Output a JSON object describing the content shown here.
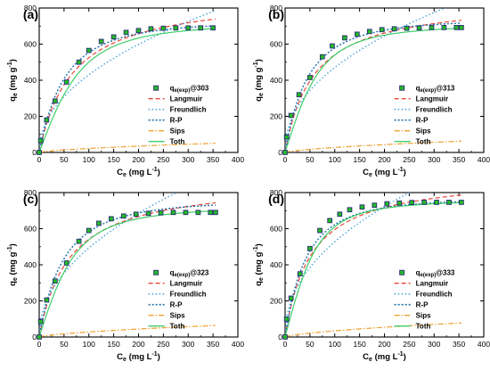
{
  "colors": {
    "marker_fill": "#22bb22",
    "marker_edge": "#2a2a7a",
    "langmuir": "#e8473a",
    "freundlich": "#4aa3d8",
    "rp": "#1e6fa8",
    "sips": "#f0a030",
    "toth": "#3fcf6a"
  },
  "chart_data": [
    {
      "type": "scatter",
      "panel_label": "(a)",
      "xlabel_main": "C",
      "xlabel_sub": "e",
      "xlabel_unit": " (mg L",
      "xlabel_sup": "-1",
      "xlabel_close": ")",
      "ylabel_main": "q",
      "ylabel_sub": "e",
      "ylabel_unit": " (mg g",
      "ylabel_sup": "-1",
      "ylabel_close": ")",
      "xlim": [
        0,
        400
      ],
      "ylim": [
        0,
        800
      ],
      "xticks": [
        0,
        50,
        100,
        150,
        200,
        250,
        300,
        350,
        400
      ],
      "yticks": [
        0,
        200,
        400,
        600,
        800
      ],
      "grid": false,
      "legend_position": "bottom-right",
      "legend": {
        "exp_main": "q",
        "exp_sub": "e(exp)",
        "exp_suffix": "@303",
        "models": [
          "Langmuir",
          "Freundlich",
          "R-P",
          "Sips",
          "Toth"
        ]
      },
      "points": {
        "x": [
          0,
          3,
          15,
          32,
          55,
          80,
          100,
          125,
          150,
          175,
          200,
          225,
          250,
          275,
          300,
          325,
          350
        ],
        "y": [
          0,
          65,
          180,
          285,
          390,
          500,
          565,
          615,
          640,
          665,
          675,
          685,
          688,
          690,
          690,
          690,
          690
        ]
      },
      "models": {
        "langmuir": {
          "qm": 880,
          "K": 0.0148
        },
        "freundlich": {
          "Kf": 48,
          "n": 2.1
        },
        "rp": {
          "K": 14,
          "a": 0.0101,
          "b": 1.09
        },
        "sips": {
          "qm": 760,
          "K": 0.00125,
          "n": 1.45
        },
        "toth": {
          "qm": 720,
          "b": 0.0102,
          "t": 1.85
        }
      },
      "x_end": 355
    },
    {
      "type": "scatter",
      "panel_label": "(b)",
      "xlabel_main": "C",
      "xlabel_sub": "e",
      "xlabel_unit": " (mg L",
      "xlabel_sup": "-1",
      "xlabel_close": ")",
      "ylabel_main": "q",
      "ylabel_sub": "e",
      "ylabel_unit": " (mg g",
      "ylabel_sup": "-1",
      "ylabel_close": ")",
      "xlim": [
        0,
        400
      ],
      "ylim": [
        0,
        800
      ],
      "xticks": [
        0,
        50,
        100,
        150,
        200,
        250,
        300,
        350,
        400
      ],
      "yticks": [
        0,
        200,
        400,
        600,
        800
      ],
      "grid": false,
      "legend_position": "bottom-right",
      "legend": {
        "exp_main": "q",
        "exp_sub": "e(exp)",
        "exp_suffix": "@313",
        "models": [
          "Langmuir",
          "Freundlich",
          "R-P",
          "Sips",
          "Toth"
        ]
      },
      "points": {
        "x": [
          0,
          3,
          12,
          28,
          50,
          75,
          95,
          120,
          145,
          170,
          195,
          220,
          245,
          270,
          295,
          320,
          345,
          355
        ],
        "y": [
          0,
          85,
          205,
          320,
          415,
          530,
          590,
          635,
          655,
          670,
          680,
          685,
          688,
          690,
          692,
          692,
          692,
          692
        ]
      },
      "models": {
        "langmuir": {
          "qm": 850,
          "K": 0.0175
        },
        "freundlich": {
          "Kf": 58,
          "n": 2.2
        },
        "rp": {
          "K": 16,
          "a": 0.0122,
          "b": 1.08
        },
        "sips": {
          "qm": 745,
          "K": 0.0016,
          "n": 1.45
        },
        "toth": {
          "qm": 710,
          "b": 0.0122,
          "t": 1.9
        }
      },
      "x_end": 355
    },
    {
      "type": "scatter",
      "panel_label": "(c)",
      "xlabel_main": "C",
      "xlabel_sub": "e",
      "xlabel_unit": " (mg L",
      "xlabel_sup": "-1",
      "xlabel_close": ")",
      "ylabel_main": "q",
      "ylabel_sub": "e",
      "ylabel_unit": " (mg g",
      "ylabel_sup": "-1",
      "ylabel_close": ")",
      "xlim": [
        0,
        400
      ],
      "ylim": [
        0,
        800
      ],
      "xticks": [
        0,
        50,
        100,
        150,
        200,
        250,
        300,
        350,
        400
      ],
      "yticks": [
        0,
        200,
        400,
        600,
        800
      ],
      "grid": false,
      "legend_position": "bottom-right",
      "legend": {
        "exp_main": "q",
        "exp_sub": "e(exp)",
        "exp_suffix": "@323",
        "models": [
          "Langmuir",
          "Freundlich",
          "R-P",
          "Sips",
          "Toth"
        ]
      },
      "points": {
        "x": [
          0,
          3,
          15,
          32,
          55,
          80,
          100,
          120,
          145,
          170,
          195,
          220,
          245,
          270,
          295,
          320,
          345,
          355
        ],
        "y": [
          0,
          85,
          205,
          310,
          410,
          530,
          590,
          630,
          655,
          670,
          680,
          685,
          688,
          690,
          690,
          690,
          690,
          690
        ]
      },
      "models": {
        "langmuir": {
          "qm": 870,
          "K": 0.0165
        },
        "freundlich": {
          "Kf": 55,
          "n": 2.1
        },
        "rp": {
          "K": 15.5,
          "a": 0.0115,
          "b": 1.08
        },
        "sips": {
          "qm": 760,
          "K": 0.0016,
          "n": 1.45
        },
        "toth": {
          "qm": 725,
          "b": 0.0118,
          "t": 1.85
        }
      },
      "x_end": 355
    },
    {
      "type": "scatter",
      "panel_label": "(d)",
      "xlabel_main": "C",
      "xlabel_sub": "e",
      "xlabel_unit": " (mg L",
      "xlabel_sup": "-1",
      "xlabel_close": ")",
      "ylabel_main": "q",
      "ylabel_sub": "e",
      "ylabel_unit": " (mg g",
      "ylabel_sup": "-1",
      "ylabel_close": ")",
      "xlim": [
        0,
        400
      ],
      "ylim": [
        0,
        800
      ],
      "xticks": [
        0,
        50,
        100,
        150,
        200,
        250,
        300,
        350,
        400
      ],
      "yticks": [
        0,
        200,
        400,
        600,
        800
      ],
      "grid": false,
      "legend_position": "bottom-right",
      "legend": {
        "exp_main": "q",
        "exp_sub": "e(exp)",
        "exp_suffix": "@333",
        "models": [
          "Langmuir",
          "Freundlich",
          "R-P",
          "Sips",
          "Toth"
        ]
      },
      "points": {
        "x": [
          0,
          3,
          12,
          30,
          50,
          70,
          90,
          110,
          130,
          155,
          180,
          205,
          230,
          255,
          280,
          305,
          330,
          355
        ],
        "y": [
          0,
          100,
          215,
          350,
          490,
          590,
          645,
          680,
          705,
          720,
          730,
          738,
          742,
          745,
          746,
          746,
          746,
          746
        ]
      },
      "models": {
        "langmuir": {
          "qm": 900,
          "K": 0.0195
        },
        "freundlich": {
          "Kf": 65,
          "n": 2.2
        },
        "rp": {
          "K": 18,
          "a": 0.0125,
          "b": 1.09
        },
        "sips": {
          "qm": 790,
          "K": 0.0019,
          "n": 1.45
        },
        "toth": {
          "qm": 760,
          "b": 0.0135,
          "t": 2.0
        }
      },
      "x_end": 355
    }
  ]
}
